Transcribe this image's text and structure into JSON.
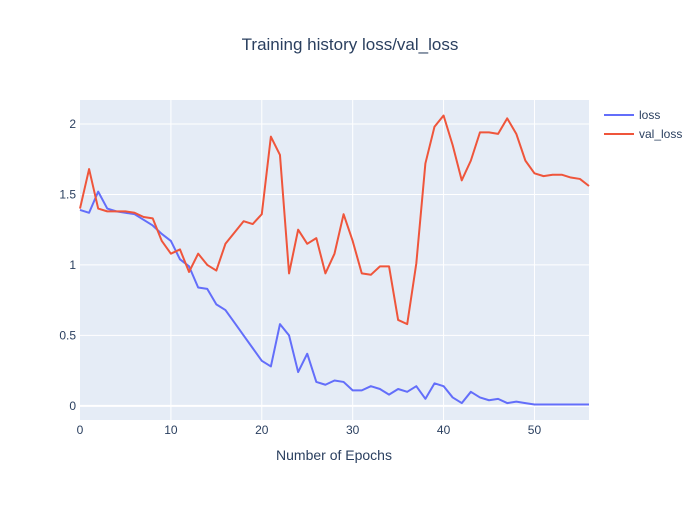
{
  "chart_data": {
    "type": "line",
    "title": "Training history loss/val_loss",
    "xlabel": "Number of Epochs",
    "ylabel": "",
    "xlim": [
      0,
      56
    ],
    "ylim": [
      -0.1,
      2.17
    ],
    "x_ticks": [
      0,
      10,
      20,
      30,
      40,
      50
    ],
    "y_ticks": [
      0,
      0.5,
      1,
      1.5,
      2
    ],
    "x_tick_labels": [
      "0",
      "10",
      "20",
      "30",
      "40",
      "50"
    ],
    "y_tick_labels": [
      "0",
      "0.5",
      "1",
      "1.5",
      "2"
    ],
    "grid": true,
    "legend_position": "top-right, outside plot",
    "plot_background": "#e5ecf6",
    "grid_color": "#ffffff",
    "text_color": "#2a3f5f",
    "x": [
      0,
      1,
      2,
      3,
      4,
      5,
      6,
      7,
      8,
      9,
      10,
      11,
      12,
      13,
      14,
      15,
      16,
      17,
      18,
      19,
      20,
      21,
      22,
      23,
      24,
      25,
      26,
      27,
      28,
      29,
      30,
      31,
      32,
      33,
      34,
      35,
      36,
      37,
      38,
      39,
      40,
      41,
      42,
      43,
      44,
      45,
      46,
      47,
      48,
      49,
      50,
      51,
      52,
      53,
      54,
      55,
      56
    ],
    "series": [
      {
        "name": "loss",
        "color": "#636efa",
        "values": [
          1.39,
          1.37,
          1.52,
          1.4,
          1.38,
          1.37,
          1.36,
          1.32,
          1.28,
          1.22,
          1.17,
          1.04,
          0.99,
          0.84,
          0.83,
          0.72,
          0.68,
          0.59,
          0.5,
          0.41,
          0.32,
          0.28,
          0.58,
          0.5,
          0.24,
          0.37,
          0.17,
          0.15,
          0.18,
          0.17,
          0.11,
          0.11,
          0.14,
          0.12,
          0.08,
          0.12,
          0.1,
          0.14,
          0.05,
          0.16,
          0.14,
          0.06,
          0.02,
          0.1,
          0.06,
          0.04,
          0.05,
          0.02,
          0.03,
          0.02,
          0.01,
          0.01,
          0.01,
          0.01,
          0.01,
          0.01,
          0.01
        ]
      },
      {
        "name": "val_loss",
        "color": "#ef553b",
        "values": [
          1.4,
          1.68,
          1.4,
          1.38,
          1.38,
          1.38,
          1.37,
          1.34,
          1.33,
          1.17,
          1.08,
          1.11,
          0.95,
          1.08,
          1.0,
          0.96,
          1.15,
          1.23,
          1.31,
          1.29,
          1.36,
          1.91,
          1.78,
          0.94,
          1.25,
          1.15,
          1.19,
          0.94,
          1.08,
          1.36,
          1.17,
          0.94,
          0.93,
          0.99,
          0.99,
          0.61,
          0.58,
          1.01,
          1.72,
          1.98,
          2.06,
          1.85,
          1.6,
          1.74,
          1.94,
          1.94,
          1.93,
          2.04,
          1.93,
          1.74,
          1.65,
          1.63,
          1.64,
          1.64,
          1.62,
          1.61,
          1.56
        ]
      }
    ]
  }
}
